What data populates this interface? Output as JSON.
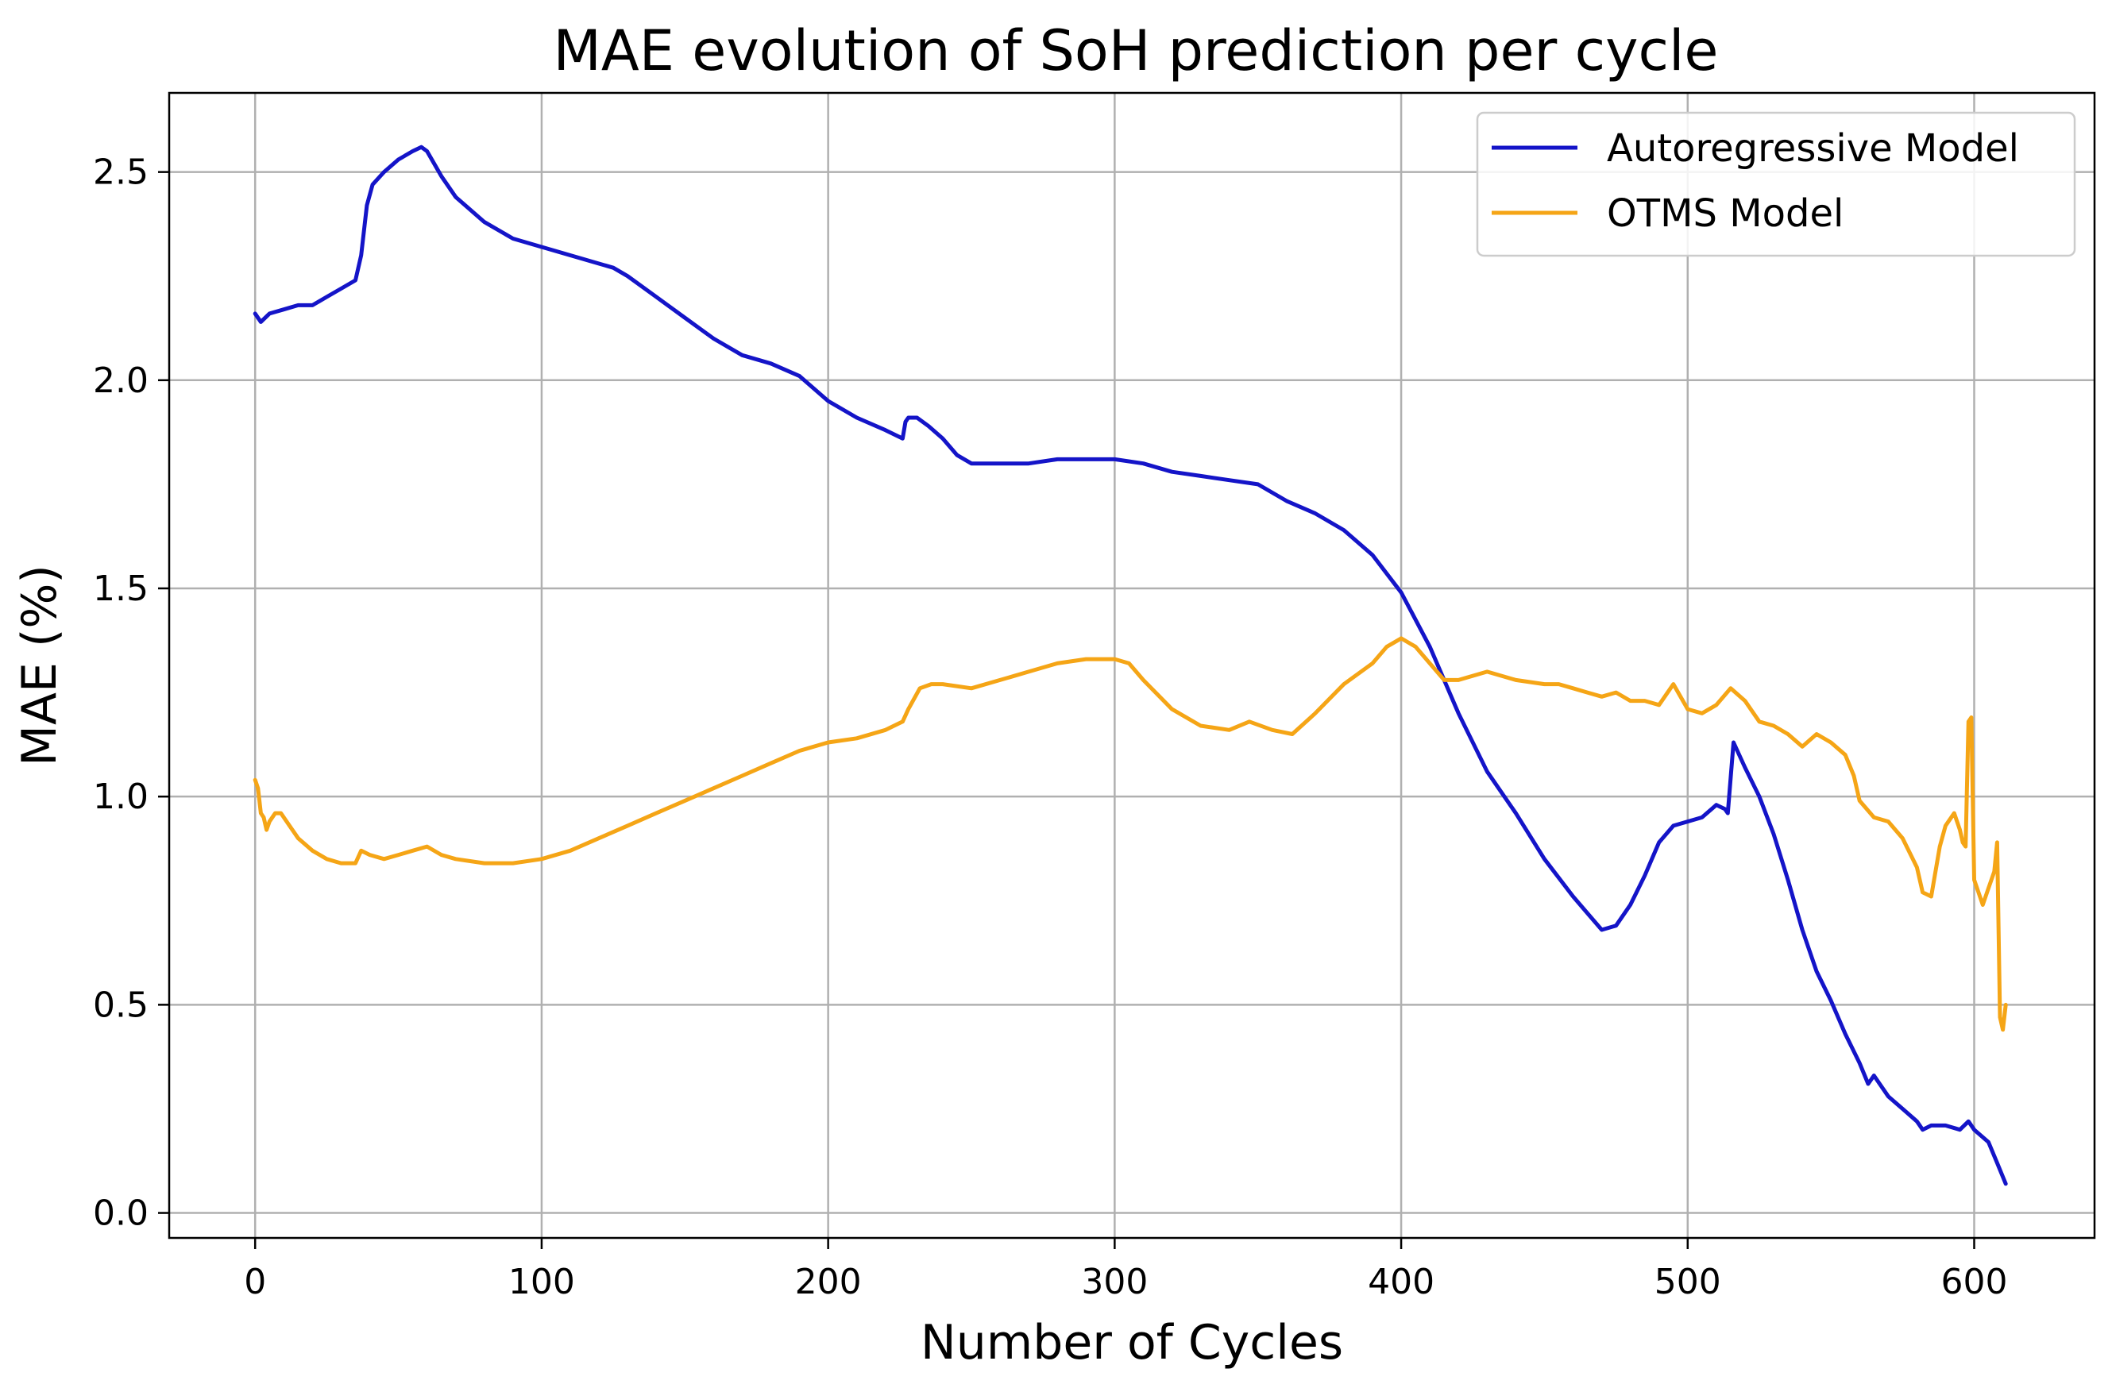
{
  "chart_data": {
    "type": "line",
    "title": "MAE evolution of SoH prediction per cycle",
    "xlabel": "Number of Cycles",
    "ylabel": "MAE (%)",
    "xlim": [
      -30,
      642
    ],
    "ylim": [
      -0.06,
      2.69
    ],
    "xticks": [
      0,
      100,
      200,
      300,
      400,
      500,
      600
    ],
    "xtick_labels": [
      "0",
      "100",
      "200",
      "300",
      "400",
      "500",
      "600"
    ],
    "yticks": [
      0.0,
      0.5,
      1.0,
      1.5,
      2.0,
      2.5
    ],
    "ytick_labels": [
      "0.0",
      "0.5",
      "1.0",
      "1.5",
      "2.0",
      "2.5"
    ],
    "grid": true,
    "legend_position": "top-right",
    "series": [
      {
        "name": "Autoregressive Model",
        "color": "#1414c8",
        "x": [
          0,
          2,
          5,
          10,
          15,
          20,
          25,
          30,
          35,
          37,
          39,
          41,
          45,
          50,
          55,
          58,
          60,
          65,
          70,
          80,
          90,
          100,
          110,
          120,
          125,
          130,
          140,
          150,
          160,
          170,
          180,
          190,
          200,
          210,
          220,
          226,
          227,
          228,
          231,
          235,
          240,
          245,
          250,
          260,
          270,
          280,
          290,
          300,
          310,
          320,
          330,
          340,
          350,
          360,
          370,
          375,
          380,
          390,
          400,
          410,
          420,
          430,
          440,
          450,
          460,
          465,
          470,
          475,
          480,
          485,
          490,
          495,
          500,
          505,
          510,
          513,
          514,
          516,
          520,
          525,
          530,
          535,
          540,
          545,
          550,
          555,
          560,
          563,
          565,
          567,
          570,
          575,
          580,
          582,
          585,
          590,
          595,
          598,
          600,
          605,
          608,
          611
        ],
        "values": [
          2.16,
          2.14,
          2.16,
          2.17,
          2.18,
          2.18,
          2.2,
          2.22,
          2.24,
          2.3,
          2.42,
          2.47,
          2.5,
          2.53,
          2.55,
          2.56,
          2.55,
          2.49,
          2.44,
          2.38,
          2.34,
          2.32,
          2.3,
          2.28,
          2.27,
          2.25,
          2.2,
          2.15,
          2.1,
          2.06,
          2.04,
          2.01,
          1.95,
          1.91,
          1.88,
          1.86,
          1.9,
          1.91,
          1.91,
          1.89,
          1.86,
          1.82,
          1.8,
          1.8,
          1.8,
          1.81,
          1.81,
          1.81,
          1.8,
          1.78,
          1.77,
          1.76,
          1.75,
          1.71,
          1.68,
          1.66,
          1.64,
          1.58,
          1.49,
          1.36,
          1.2,
          1.06,
          0.96,
          0.85,
          0.76,
          0.72,
          0.68,
          0.69,
          0.74,
          0.81,
          0.89,
          0.93,
          0.94,
          0.95,
          0.98,
          0.97,
          0.96,
          1.13,
          1.07,
          1.0,
          0.91,
          0.8,
          0.68,
          0.58,
          0.51,
          0.43,
          0.36,
          0.31,
          0.33,
          0.31,
          0.28,
          0.25,
          0.22,
          0.2,
          0.21,
          0.21,
          0.2,
          0.22,
          0.2,
          0.17,
          0.12,
          0.07
        ]
      },
      {
        "name": "OTMS Model",
        "color": "#f5a516",
        "x": [
          0,
          1,
          2,
          3,
          4,
          5,
          7,
          9,
          12,
          15,
          20,
          25,
          30,
          35,
          37,
          40,
          45,
          50,
          55,
          60,
          65,
          70,
          80,
          90,
          100,
          110,
          120,
          130,
          140,
          150,
          160,
          170,
          180,
          190,
          200,
          210,
          220,
          226,
          228,
          232,
          236,
          240,
          250,
          260,
          270,
          280,
          290,
          300,
          305,
          310,
          320,
          330,
          340,
          347,
          355,
          362,
          370,
          380,
          390,
          395,
          400,
          405,
          410,
          415,
          420,
          430,
          440,
          450,
          455,
          460,
          465,
          470,
          475,
          480,
          485,
          490,
          495,
          500,
          505,
          510,
          515,
          520,
          525,
          530,
          535,
          540,
          545,
          550,
          555,
          558,
          560,
          565,
          570,
          575,
          580,
          582,
          585,
          588,
          590,
          593,
          595,
          596,
          597,
          598,
          599,
          600,
          603,
          605,
          607,
          608,
          609,
          610,
          611
        ],
        "values": [
          1.04,
          1.02,
          0.96,
          0.95,
          0.92,
          0.94,
          0.96,
          0.96,
          0.93,
          0.9,
          0.87,
          0.85,
          0.84,
          0.84,
          0.87,
          0.86,
          0.85,
          0.86,
          0.87,
          0.88,
          0.86,
          0.85,
          0.84,
          0.84,
          0.85,
          0.87,
          0.9,
          0.93,
          0.96,
          0.99,
          1.02,
          1.05,
          1.08,
          1.11,
          1.13,
          1.14,
          1.16,
          1.18,
          1.21,
          1.26,
          1.27,
          1.27,
          1.26,
          1.28,
          1.3,
          1.32,
          1.33,
          1.33,
          1.32,
          1.28,
          1.21,
          1.17,
          1.16,
          1.18,
          1.16,
          1.15,
          1.2,
          1.27,
          1.32,
          1.36,
          1.38,
          1.36,
          1.32,
          1.28,
          1.28,
          1.3,
          1.28,
          1.27,
          1.27,
          1.26,
          1.25,
          1.24,
          1.25,
          1.23,
          1.23,
          1.22,
          1.27,
          1.21,
          1.2,
          1.22,
          1.26,
          1.23,
          1.18,
          1.17,
          1.15,
          1.12,
          1.15,
          1.13,
          1.1,
          1.05,
          0.99,
          0.95,
          0.94,
          0.9,
          0.83,
          0.77,
          0.76,
          0.88,
          0.93,
          0.96,
          0.92,
          0.89,
          0.88,
          1.18,
          1.19,
          0.8,
          0.74,
          0.78,
          0.82,
          0.89,
          0.47,
          0.44,
          0.5
        ]
      }
    ]
  }
}
